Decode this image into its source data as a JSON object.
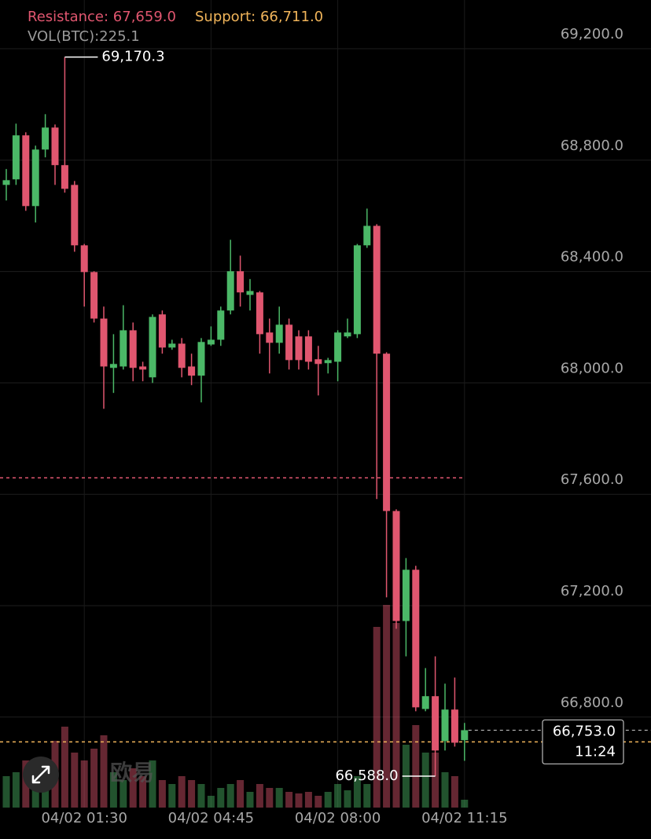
{
  "chart_data": {
    "type": "candlestick",
    "categories": [
      null,
      null,
      null,
      null,
      null,
      null,
      null,
      null,
      "04/02 01:30",
      null,
      null,
      null,
      null,
      null,
      null,
      null,
      null,
      null,
      null,
      null,
      null,
      "04/02 04:45",
      null,
      null,
      null,
      null,
      null,
      null,
      null,
      null,
      null,
      null,
      null,
      null,
      "04/02 08:00",
      null,
      null,
      null,
      null,
      null,
      null,
      null,
      null,
      null,
      null,
      null,
      null,
      "04/02 11:15"
    ],
    "open": [
      68711,
      68731,
      68889,
      68635,
      68838,
      68917,
      68782,
      68711,
      68494,
      68398,
      68231,
      68054,
      68059,
      68189,
      68059,
      68020,
      68246,
      68127,
      68141,
      68059,
      68026,
      68138,
      68155,
      68260,
      68401,
      68316,
      68325,
      68181,
      68144,
      68209,
      68167,
      68167,
      68085,
      68071,
      68076,
      68167,
      68175,
      68494,
      68564,
      68105,
      67540,
      67145,
      67329,
      66829,
      66875,
      66714,
      66827,
      66717
    ],
    "high": [
      68768,
      68931,
      68900,
      68852,
      68965,
      68928,
      69170.3,
      68725,
      68499,
      68401,
      68274,
      68175,
      68279,
      68217,
      68076,
      68246,
      68260,
      68155,
      68161,
      68105,
      68161,
      68203,
      68274,
      68514,
      68457,
      68373,
      68330,
      68231,
      68274,
      68231,
      68189,
      68189,
      68133,
      68090,
      68189,
      68231,
      68499,
      68626,
      68570,
      68110,
      67546,
      67371,
      67343,
      66976,
      67018,
      66920,
      66942,
      66779
    ],
    "low": [
      68655,
      68711,
      68618,
      68576,
      68810,
      68711,
      68683,
      68471,
      68274,
      68217,
      67907,
      67964,
      68048,
      68006,
      68006,
      68000,
      68105,
      68119,
      68020,
      67992,
      67930,
      68133,
      68133,
      68246,
      68274,
      68260,
      68105,
      68034,
      68105,
      68048,
      68048,
      68048,
      67955,
      68034,
      68006,
      68161,
      68161,
      68485,
      67583,
      67230,
      67117,
      67018,
      66821,
      66821,
      66588,
      66680,
      66694,
      66643
    ],
    "close": [
      68728,
      68889,
      68635,
      68838,
      68917,
      68782,
      68697,
      68494,
      68398,
      68231,
      68059,
      68068,
      68189,
      68054,
      68048,
      68237,
      68127,
      68141,
      68054,
      68026,
      68147,
      68155,
      68260,
      68401,
      68325,
      68330,
      68175,
      68144,
      68209,
      68082,
      68082,
      68076,
      68068,
      68082,
      68181,
      68181,
      68494,
      68564,
      68105,
      67540,
      67145,
      67329,
      66835,
      66875,
      66680,
      66827,
      66708,
      66753
    ],
    "up_color": "#4bb867",
    "down_color": "#e0566f",
    "volume": {
      "label": "VOL(BTC):",
      "values": [
        900,
        1013,
        1350,
        1125,
        1350,
        1913,
        2318,
        1575,
        1350,
        1688,
        2070,
        1013,
        788,
        1125,
        900,
        1350,
        788,
        675,
        900,
        788,
        675,
        338,
        563,
        675,
        788,
        450,
        675,
        563,
        563,
        450,
        405,
        450,
        338,
        450,
        675,
        495,
        900,
        675,
        5175,
        5805,
        5288,
        1800,
        2363,
        1575,
        1575,
        1013,
        900,
        225.1
      ]
    },
    "ylim": [
      66475,
      69375
    ],
    "yticks": [
      {
        "value": 66800,
        "label": "66,800.0"
      },
      {
        "value": 67200,
        "label": "67,200.0"
      },
      {
        "value": 67600,
        "label": "67,600.0"
      },
      {
        "value": 68000,
        "label": "68,000.0"
      },
      {
        "value": 68400,
        "label": "68,400.0"
      },
      {
        "value": 68800,
        "label": "68,800.0"
      },
      {
        "value": 69200,
        "label": "69,200.0"
      }
    ],
    "grid": true,
    "resistance": {
      "label": "Resistance:",
      "value": 67659,
      "value_label": "67,659.0",
      "color": "#e0566f"
    },
    "support": {
      "label": "Support:",
      "value": 66711,
      "value_label": "66,711.0",
      "color": "#f0b45a"
    },
    "max_label": "69,170.3",
    "min_label": "66,588.0",
    "last_price_label": "66,753.0",
    "countdown": "11:24",
    "watermark": "欧易"
  }
}
